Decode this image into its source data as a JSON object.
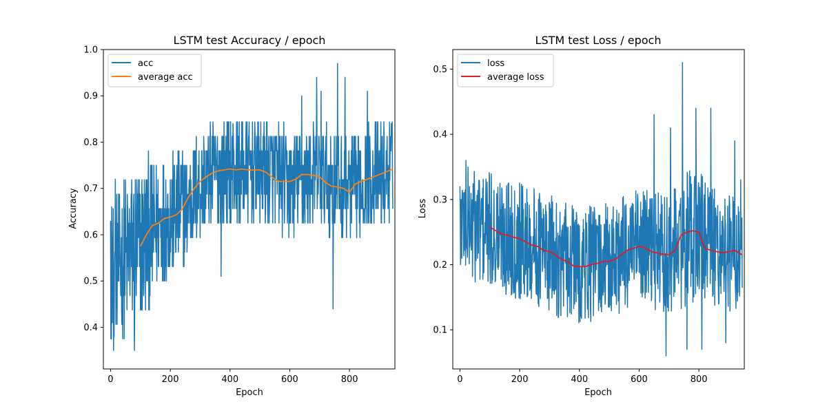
{
  "chart_data": [
    {
      "type": "line",
      "title": "LSTM test Accuracy / epoch",
      "xlabel": "Epoch",
      "ylabel": "Accuracy",
      "xlim": [
        -24,
        952
      ],
      "ylim": [
        0.31,
        1.0
      ],
      "xticks": [
        0,
        200,
        400,
        600,
        800
      ],
      "yticks": [
        0.4,
        0.5,
        0.6,
        0.7,
        0.8,
        0.9,
        1.0
      ],
      "ytick_decimals": 1,
      "grid": false,
      "legend": "upper-left",
      "noisy_series_anchors": {
        "x": [
          0,
          50,
          100,
          150,
          200,
          250,
          300,
          350,
          400,
          450,
          500,
          550,
          600,
          650,
          700,
          750,
          800,
          850,
          900,
          945
        ],
        "center": [
          0.54,
          0.55,
          0.58,
          0.62,
          0.64,
          0.66,
          0.71,
          0.73,
          0.74,
          0.74,
          0.74,
          0.73,
          0.71,
          0.72,
          0.73,
          0.71,
          0.7,
          0.72,
          0.73,
          0.74
        ],
        "spread": [
          0.14,
          0.15,
          0.16,
          0.13,
          0.12,
          0.11,
          0.1,
          0.1,
          0.1,
          0.1,
          0.1,
          0.1,
          0.1,
          0.1,
          0.1,
          0.1,
          0.1,
          0.1,
          0.1,
          0.1
        ],
        "min_visible": [
          0.34,
          0.34,
          0.34,
          0.4,
          0.4,
          0.5,
          0.5,
          0.5,
          0.5,
          0.5,
          0.5,
          0.5,
          0.5,
          0.5,
          0.5,
          0.44,
          0.5,
          0.5,
          0.5,
          0.63
        ],
        "max_visible": [
          0.66,
          0.72,
          0.75,
          0.84,
          0.87,
          0.9,
          0.9,
          0.9,
          0.9,
          0.9,
          0.9,
          0.9,
          0.9,
          0.94,
          0.94,
          0.97,
          0.94,
          0.94,
          0.9,
          0.84
        ]
      },
      "series": [
        {
          "name": "acc",
          "color": "#1f77b4",
          "x": [
            0,
            2,
            4,
            6,
            8,
            10,
            12,
            16,
            20,
            24,
            80,
            370,
            410,
            640,
            690,
            705,
            745,
            760,
            785,
            860,
            940
          ],
          "y": [
            0.63,
            0.47,
            0.66,
            0.41,
            0.56,
            0.35,
            0.38,
            0.72,
            0.44,
            0.5,
            0.35,
            0.51,
            0.84,
            0.9,
            0.94,
            0.91,
            0.44,
            0.97,
            0.94,
            0.91,
            0.84
          ]
        },
        {
          "name": "average acc",
          "color": "#ff7f0e",
          "x": [
            100,
            120,
            140,
            160,
            180,
            200,
            220,
            240,
            260,
            280,
            300,
            320,
            340,
            360,
            380,
            400,
            420,
            440,
            460,
            480,
            500,
            520,
            540,
            560,
            580,
            600,
            620,
            640,
            660,
            680,
            700,
            720,
            740,
            760,
            780,
            800,
            820,
            840,
            860,
            880,
            900,
            920,
            945
          ],
          "y": [
            0.575,
            0.6,
            0.62,
            0.625,
            0.635,
            0.638,
            0.643,
            0.655,
            0.68,
            0.7,
            0.715,
            0.725,
            0.733,
            0.738,
            0.74,
            0.742,
            0.74,
            0.742,
            0.74,
            0.74,
            0.74,
            0.735,
            0.725,
            0.715,
            0.715,
            0.715,
            0.72,
            0.73,
            0.73,
            0.728,
            0.725,
            0.713,
            0.705,
            0.703,
            0.7,
            0.692,
            0.71,
            0.715,
            0.72,
            0.725,
            0.73,
            0.735,
            0.742
          ]
        }
      ]
    },
    {
      "type": "line",
      "title": "LSTM test Loss / epoch",
      "xlabel": "Epoch",
      "ylabel": "Loss",
      "xlim": [
        -24,
        952
      ],
      "ylim": [
        0.04,
        0.53
      ],
      "xticks": [
        0,
        200,
        400,
        600,
        800
      ],
      "yticks": [
        0.1,
        0.2,
        0.3,
        0.4,
        0.5
      ],
      "ytick_decimals": 1,
      "grid": false,
      "legend": "upper-left",
      "noisy_series_anchors": {
        "x": [
          0,
          50,
          100,
          150,
          200,
          250,
          300,
          350,
          400,
          450,
          500,
          550,
          600,
          650,
          700,
          750,
          800,
          850,
          900,
          945
        ],
        "center": [
          0.27,
          0.26,
          0.25,
          0.245,
          0.238,
          0.228,
          0.215,
          0.205,
          0.198,
          0.2,
          0.205,
          0.215,
          0.225,
          0.222,
          0.215,
          0.235,
          0.25,
          0.225,
          0.22,
          0.215
        ],
        "spread": [
          0.07,
          0.08,
          0.08,
          0.08,
          0.08,
          0.08,
          0.08,
          0.08,
          0.08,
          0.08,
          0.08,
          0.08,
          0.08,
          0.08,
          0.08,
          0.09,
          0.09,
          0.08,
          0.08,
          0.07
        ],
        "min_visible": [
          0.2,
          0.16,
          0.14,
          0.12,
          0.11,
          0.1,
          0.1,
          0.1,
          0.08,
          0.09,
          0.1,
          0.1,
          0.09,
          0.1,
          0.06,
          0.07,
          0.07,
          0.08,
          0.08,
          0.13
        ],
        "max_visible": [
          0.36,
          0.37,
          0.36,
          0.37,
          0.37,
          0.36,
          0.37,
          0.37,
          0.35,
          0.36,
          0.36,
          0.37,
          0.38,
          0.43,
          0.38,
          0.51,
          0.44,
          0.4,
          0.39,
          0.33
        ]
      },
      "series": [
        {
          "name": "loss",
          "color": "#1f77b4",
          "x": [
            0,
            2,
            4,
            6,
            10,
            20,
            30,
            650,
            690,
            705,
            745,
            760,
            790,
            810,
            840,
            890,
            920,
            940
          ],
          "y": [
            0.32,
            0.2,
            0.3,
            0.21,
            0.31,
            0.36,
            0.25,
            0.43,
            0.06,
            0.41,
            0.51,
            0.07,
            0.44,
            0.07,
            0.44,
            0.08,
            0.39,
            0.33
          ]
        },
        {
          "name": "average loss",
          "color": "#e41a1c",
          "x": [
            100,
            120,
            140,
            160,
            180,
            200,
            220,
            240,
            260,
            280,
            300,
            320,
            340,
            360,
            380,
            400,
            420,
            440,
            460,
            480,
            500,
            520,
            540,
            560,
            580,
            600,
            620,
            640,
            660,
            680,
            700,
            720,
            740,
            760,
            780,
            800,
            820,
            840,
            860,
            880,
            900,
            920,
            945
          ],
          "y": [
            0.258,
            0.252,
            0.247,
            0.245,
            0.242,
            0.24,
            0.235,
            0.23,
            0.228,
            0.222,
            0.22,
            0.215,
            0.208,
            0.205,
            0.198,
            0.197,
            0.197,
            0.2,
            0.202,
            0.205,
            0.205,
            0.208,
            0.215,
            0.222,
            0.225,
            0.228,
            0.226,
            0.22,
            0.218,
            0.216,
            0.215,
            0.222,
            0.245,
            0.25,
            0.252,
            0.25,
            0.225,
            0.222,
            0.22,
            0.218,
            0.22,
            0.222,
            0.215
          ]
        }
      ]
    }
  ]
}
